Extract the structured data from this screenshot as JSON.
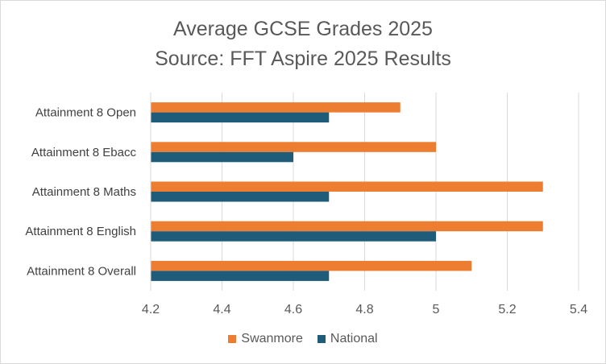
{
  "chart_data": {
    "type": "bar",
    "orientation": "horizontal",
    "title": "Average GCSE Grades 2025",
    "subtitle": "Source: FFT Aspire 2025 Results",
    "categories": [
      "Attainment 8 Open",
      "Attainment 8 Ebacc",
      "Attainment 8 Maths",
      "Attainment 8 English",
      "Attainment 8 Overall"
    ],
    "series": [
      {
        "name": "Swanmore",
        "color": "#ED7D31",
        "values": [
          4.9,
          5.0,
          5.3,
          5.3,
          5.1
        ]
      },
      {
        "name": "National",
        "color": "#1F5C7A",
        "values": [
          4.7,
          4.6,
          4.7,
          5.0,
          4.7
        ]
      }
    ],
    "xlim": [
      4.2,
      5.4
    ],
    "xticks": [
      "4.2",
      "4.4",
      "4.6",
      "4.8",
      "5",
      "5.2",
      "5.4"
    ],
    "grid": true,
    "legend_position": "bottom"
  }
}
